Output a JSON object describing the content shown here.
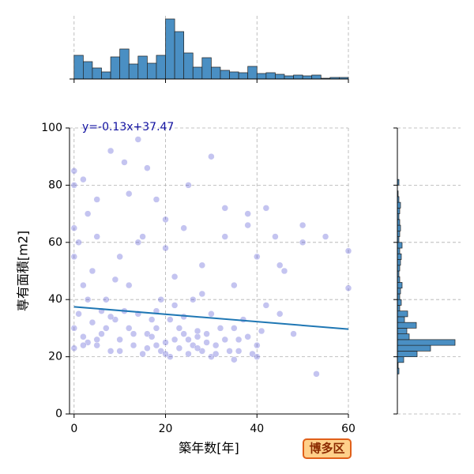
{
  "chart_data": [
    {
      "type": "histogram",
      "bins": [
        0,
        2,
        4,
        6,
        8,
        10,
        12,
        14,
        16,
        18,
        20,
        22,
        24,
        26,
        28,
        30,
        32,
        34,
        36,
        38,
        40,
        42,
        44,
        46,
        48,
        50,
        52,
        54,
        56,
        58,
        60
      ],
      "counts": [
        30,
        22,
        14,
        9,
        28,
        38,
        19,
        29,
        20,
        30,
        76,
        60,
        33,
        15,
        27,
        15,
        11,
        9,
        8,
        16,
        7,
        8,
        6,
        4,
        5,
        4,
        5,
        1,
        2,
        2
      ],
      "color": "#4a8fc3",
      "orientation": "vertical",
      "xlim": [
        -1,
        60
      ],
      "xticks": [
        0,
        20,
        40,
        60
      ],
      "ylim": [
        0,
        80
      ],
      "grid": true
    },
    {
      "type": "scatter",
      "xlabel": "築年数[年]",
      "ylabel": "専有面積[m2]",
      "color": "#3a3acc",
      "x": [
        0,
        0,
        0,
        0,
        0,
        0,
        1,
        1,
        2,
        2,
        3,
        3,
        4,
        4,
        5,
        5,
        6,
        7,
        8,
        8,
        9,
        10,
        10,
        11,
        12,
        12,
        13,
        14,
        14,
        15,
        15,
        16,
        17,
        18,
        18,
        19,
        19,
        20,
        20,
        21,
        21,
        22,
        22,
        23,
        24,
        24,
        25,
        26,
        26,
        27,
        28,
        28,
        29,
        30,
        30,
        31,
        32,
        33,
        34,
        35,
        35,
        36,
        37,
        38,
        39,
        40,
        40,
        41,
        42,
        44,
        45,
        46,
        48,
        50,
        53,
        55,
        60,
        2,
        5,
        9,
        14,
        16,
        20,
        25,
        30,
        33,
        38,
        12,
        22,
        28,
        35,
        8,
        18,
        45,
        50,
        3,
        11,
        27,
        42,
        60,
        5,
        7,
        10,
        13,
        16,
        18,
        20,
        23,
        25,
        27,
        29,
        31,
        33,
        36,
        38,
        40,
        2,
        6,
        17,
        24
      ],
      "y": [
        23,
        30,
        55,
        65,
        80,
        85,
        35,
        60,
        27,
        45,
        25,
        70,
        32,
        50,
        24,
        62,
        28,
        40,
        22,
        92,
        33,
        26,
        55,
        88,
        30,
        45,
        24,
        96,
        35,
        21,
        62,
        28,
        33,
        24,
        75,
        22,
        40,
        25,
        58,
        20,
        33,
        26,
        48,
        23,
        28,
        65,
        21,
        24,
        40,
        27,
        22,
        52,
        25,
        20,
        35,
        24,
        30,
        62,
        22,
        19,
        45,
        26,
        33,
        70,
        21,
        24,
        55,
        29,
        38,
        62,
        35,
        50,
        28,
        60,
        14,
        62,
        57,
        82,
        75,
        47,
        60,
        86,
        68,
        80,
        90,
        72,
        66,
        77,
        38,
        42,
        30,
        34,
        36,
        52,
        66,
        40,
        36,
        29,
        72,
        44,
        26,
        30,
        22,
        28,
        23,
        30,
        21,
        30,
        26,
        23,
        28,
        21,
        26,
        22,
        27,
        20,
        24,
        36,
        27,
        34
      ],
      "regression": {
        "label": "y=-0.13x+37.47",
        "slope": -0.13,
        "intercept": 37.47,
        "color": "#1f77b4"
      },
      "xlim": [
        -1,
        60
      ],
      "xticks": [
        0,
        20,
        40,
        60
      ],
      "ylim": [
        0,
        100
      ],
      "yticks": [
        0,
        20,
        40,
        60,
        80,
        100
      ],
      "grid": true,
      "badge": "博多区"
    },
    {
      "type": "histogram",
      "bins": [
        14,
        16,
        18,
        20,
        22,
        24,
        26,
        28,
        30,
        32,
        34,
        36,
        38,
        40,
        42,
        44,
        46,
        48,
        50,
        52,
        54,
        56,
        58,
        60,
        62,
        64,
        66,
        68,
        70,
        72,
        74,
        76,
        78,
        80,
        82
      ],
      "counts": [
        2,
        1,
        8,
        25,
        42,
        73,
        15,
        12,
        24,
        9,
        13,
        3,
        5,
        3,
        4,
        6,
        3,
        2,
        3,
        4,
        5,
        3,
        6,
        2,
        3,
        4,
        3,
        2,
        3,
        4,
        2,
        1,
        0,
        2
      ],
      "color": "#4a8fc3",
      "orientation": "horizontal",
      "xlim": [
        0,
        80
      ],
      "ylim": [
        0,
        100
      ],
      "yticks": [
        0,
        20,
        40,
        60,
        80,
        100
      ],
      "grid": true
    }
  ]
}
